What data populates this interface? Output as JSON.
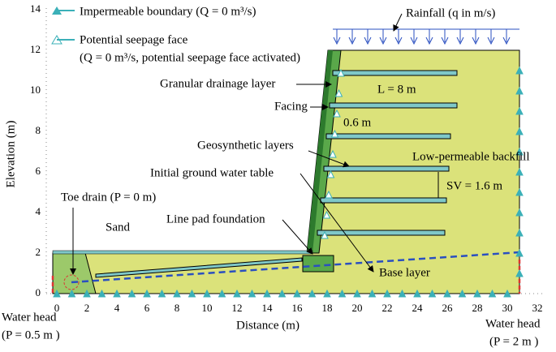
{
  "axes": {
    "x_label": "Distance (m)",
    "y_label": "Elevation (m)",
    "x_ticks": [
      0,
      2,
      4,
      6,
      8,
      10,
      12,
      14,
      16,
      18,
      20,
      22,
      24,
      26,
      28,
      30,
      32
    ],
    "y_ticks": [
      0,
      2,
      4,
      6,
      8,
      10,
      12,
      14
    ]
  },
  "legend": [
    {
      "label": "Impermeable boundary (Q = 0 m³/s)"
    },
    {
      "label": "Potential seepage face",
      "detail": "(Q = 0 m³/s, potential seepage face activated)"
    }
  ],
  "annotations": {
    "rainfall": "Rainfall (q in m/s)",
    "drainage": "Granular drainage layer",
    "facing": "Facing",
    "length": "L = 8 m",
    "thickness": "0.6 m",
    "geosynthetic": "Geosynthetic layers",
    "backfill": "Low-permeable backfill",
    "water_table": "Initial ground water table",
    "spacing": "SV = 1.6 m",
    "toe_drain": "Toe drain (P = 0 m)",
    "sand": "Sand",
    "pad": "Line pad foundation",
    "base": "Base layer",
    "left_head": [
      "Water head",
      "(P = 0.5 m )"
    ],
    "right_head": [
      "Water head",
      "(P = 2 m )"
    ]
  }
}
